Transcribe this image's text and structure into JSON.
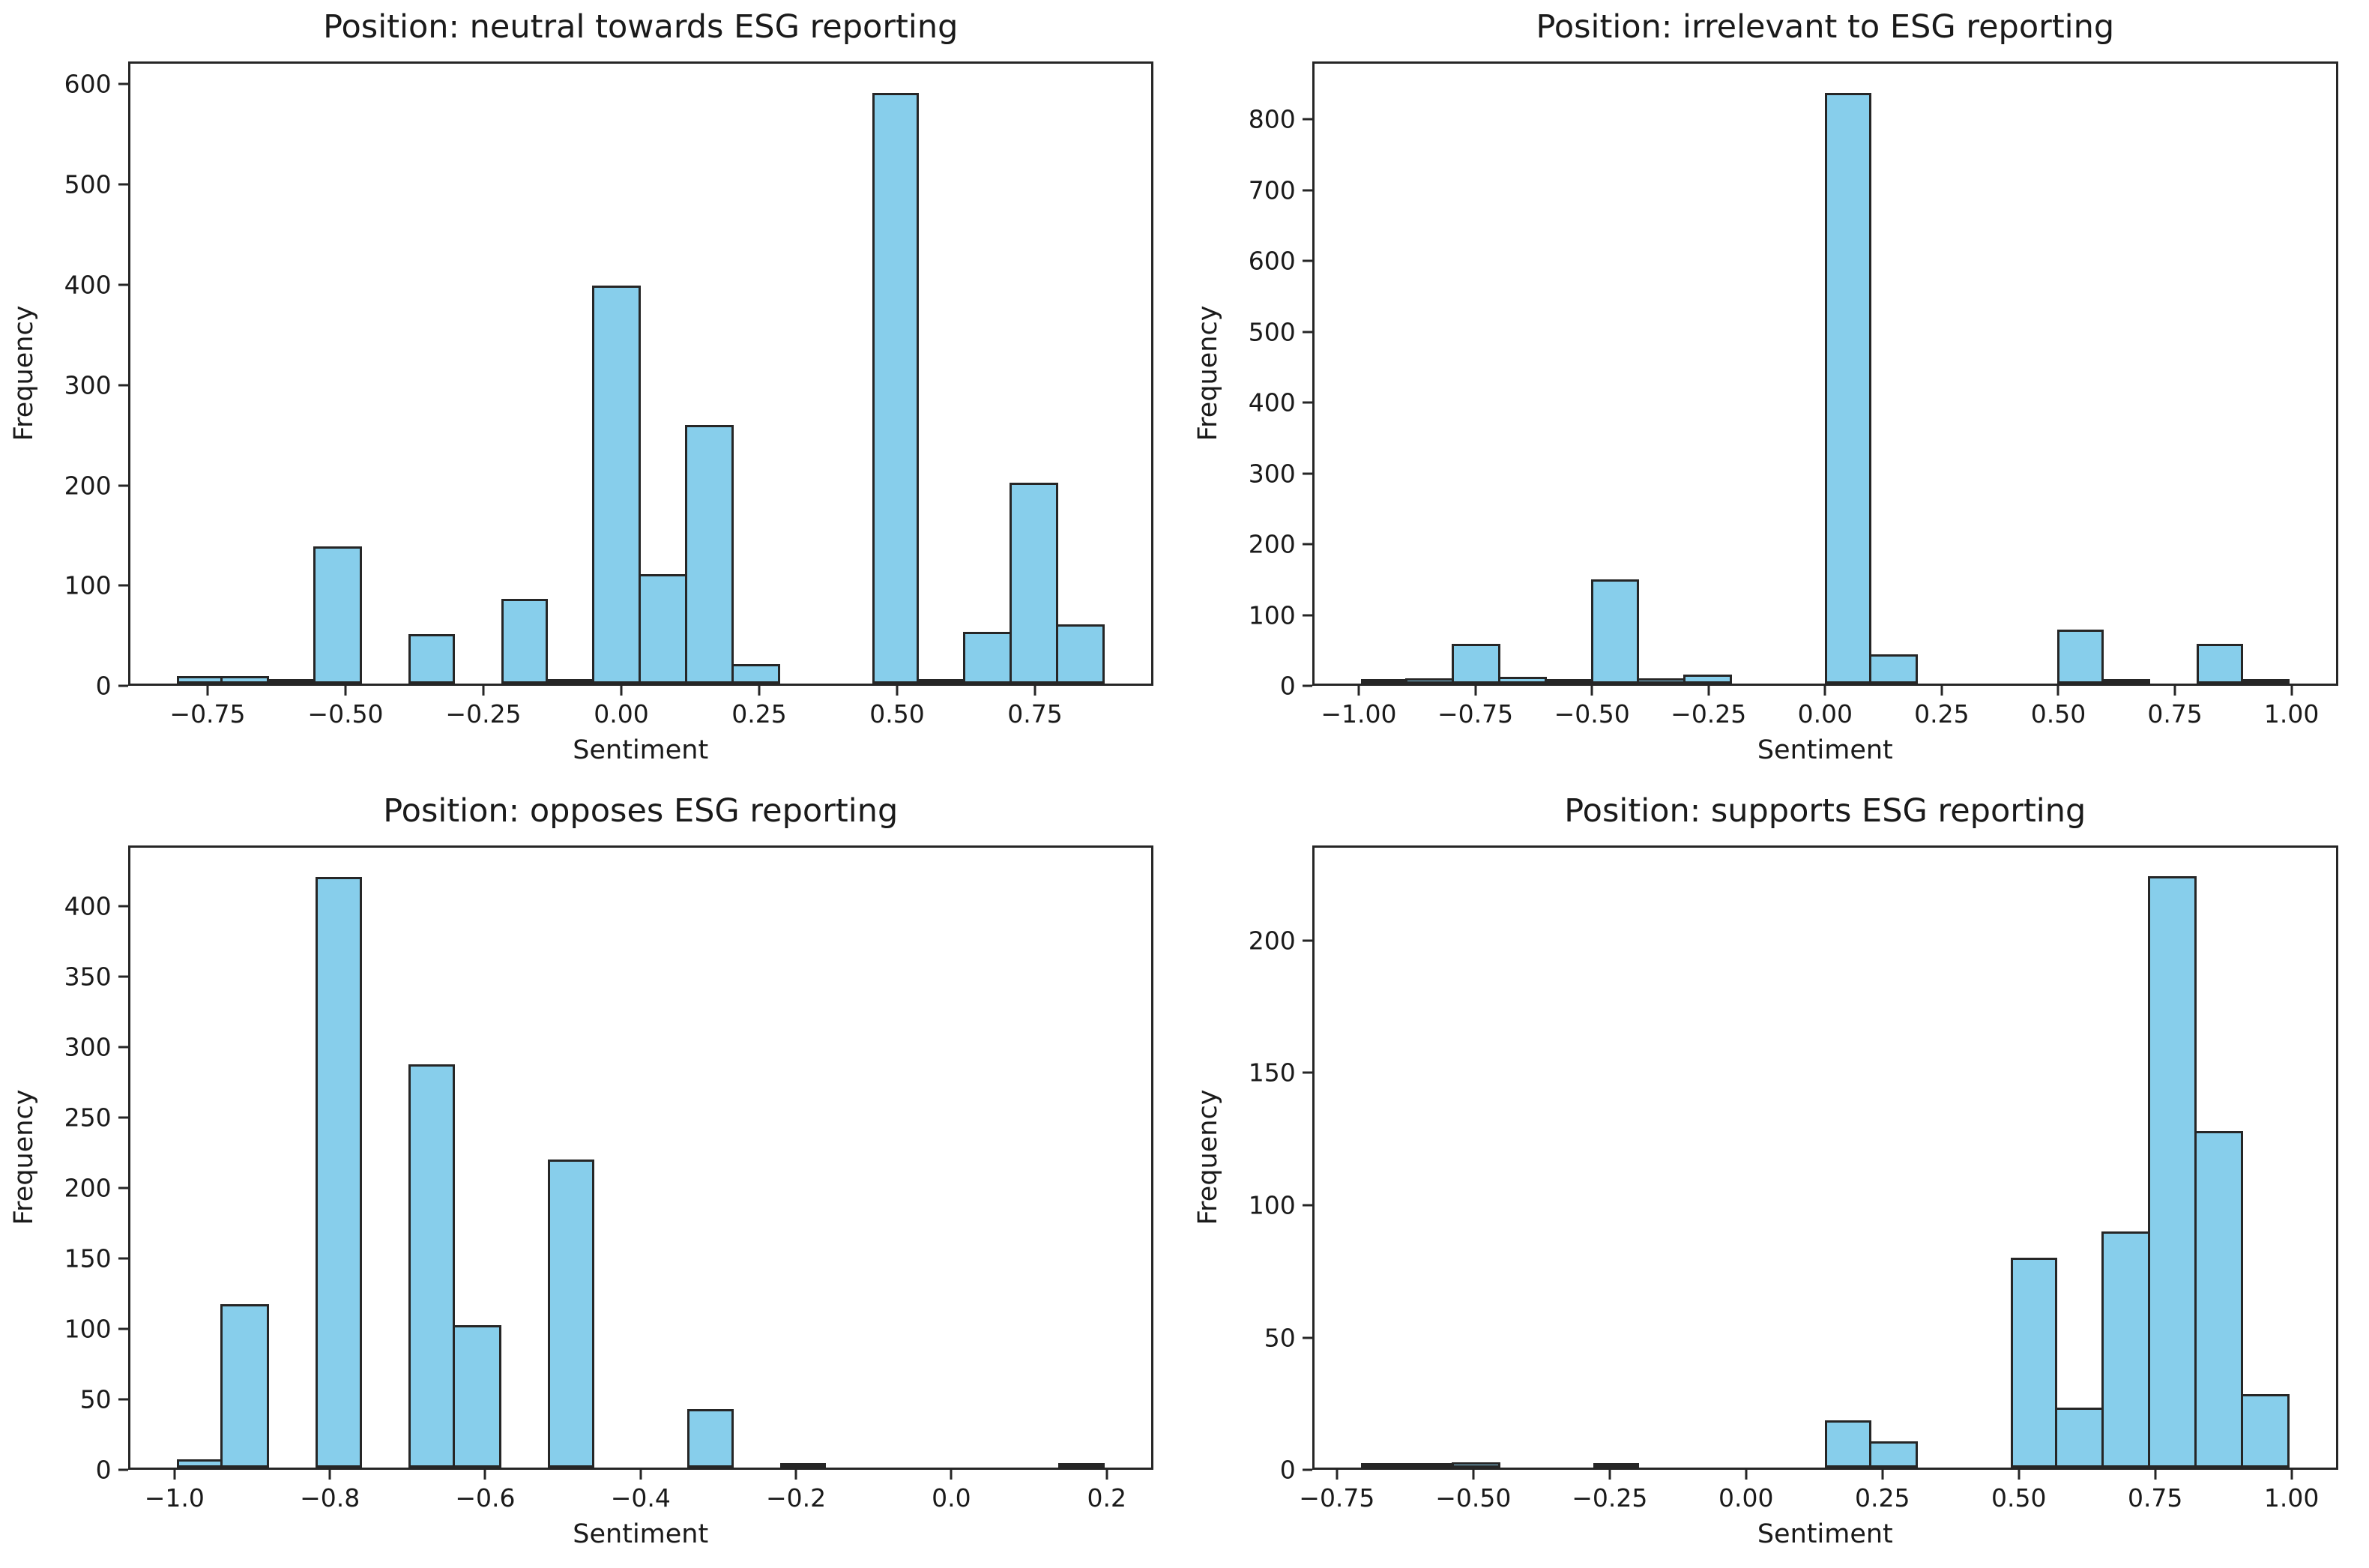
{
  "figure": {
    "background_color": "#ffffff",
    "bar_fill_color": "#87CEEB",
    "bar_edge_color": "#262626",
    "axis_color": "#262626",
    "text_color": "#1a1a1a"
  },
  "chart_data": [
    {
      "type": "bar",
      "subtype": "histogram",
      "title": "Position: neutral towards ESG reporting",
      "xlabel": "Sentiment",
      "ylabel": "Frequency",
      "grid": false,
      "legend": false,
      "bins": {
        "start": -0.81,
        "width": 0.0845,
        "count": 20
      },
      "values": [
        8,
        8,
        3,
        138,
        0,
        50,
        0,
        85,
        3,
        400,
        110,
        260,
        20,
        0,
        0,
        593,
        3,
        52,
        202,
        60
      ],
      "xlim": [
        -0.8945,
        0.9645
      ],
      "ylim": [
        0,
        623
      ],
      "xtick_values": [
        -0.75,
        -0.5,
        -0.25,
        0,
        0.25,
        0.5,
        0.75
      ],
      "xtick_labels": [
        "−0.75",
        "−0.50",
        "−0.25",
        "0.00",
        "0.25",
        "0.50",
        "0.75"
      ],
      "ytick_values": [
        0,
        100,
        200,
        300,
        400,
        500,
        600
      ],
      "ytick_labels": [
        "0",
        "100",
        "200",
        "300",
        "400",
        "500",
        "600"
      ]
    },
    {
      "type": "bar",
      "subtype": "histogram",
      "title": "Position: irrelevant to ESG reporting",
      "xlabel": "Sentiment",
      "ylabel": "Frequency",
      "grid": false,
      "legend": false,
      "bins": {
        "start": -1.0,
        "width": 0.1,
        "count": 20
      },
      "values": [
        3,
        8,
        57,
        10,
        3,
        148,
        8,
        13,
        0,
        0,
        840,
        42,
        0,
        0,
        0,
        77,
        4,
        0,
        57,
        4
      ],
      "xlim": [
        -1.1,
        1.1
      ],
      "ylim": [
        0,
        882
      ],
      "xtick_values": [
        -1,
        -0.75,
        -0.5,
        -0.25,
        0,
        0.25,
        0.5,
        0.75,
        1
      ],
      "xtick_labels": [
        "−1.00",
        "−0.75",
        "−0.50",
        "−0.25",
        "0.00",
        "0.25",
        "0.50",
        "0.75",
        "1.00"
      ],
      "ytick_values": [
        0,
        100,
        200,
        300,
        400,
        500,
        600,
        700,
        800
      ],
      "ytick_labels": [
        "0",
        "100",
        "200",
        "300",
        "400",
        "500",
        "600",
        "700",
        "800"
      ]
    },
    {
      "type": "bar",
      "subtype": "histogram",
      "title": "Position: opposes ESG reporting",
      "xlabel": "Sentiment",
      "ylabel": "Frequency",
      "grid": false,
      "legend": false,
      "bins": {
        "start": -1.0,
        "width": 0.06,
        "count": 20
      },
      "values": [
        6,
        117,
        0,
        422,
        0,
        288,
        102,
        0,
        220,
        0,
        0,
        42,
        0,
        2,
        0,
        0,
        0,
        0,
        0,
        2
      ],
      "xlim": [
        -1.06,
        0.26
      ],
      "ylim": [
        0,
        443
      ],
      "xtick_values": [
        -1,
        -0.8,
        -0.6,
        -0.4,
        -0.2,
        0,
        0.2
      ],
      "xtick_labels": [
        "−1.0",
        "−0.8",
        "−0.6",
        "−0.4",
        "−0.2",
        "0.0",
        "0.2"
      ],
      "ytick_values": [
        0,
        50,
        100,
        150,
        200,
        250,
        300,
        350,
        400
      ],
      "ytick_labels": [
        "0",
        "50",
        "100",
        "150",
        "200",
        "250",
        "300",
        "350",
        "400"
      ]
    },
    {
      "type": "bar",
      "subtype": "histogram",
      "title": "Position: supports ESG reporting",
      "xlabel": "Sentiment",
      "ylabel": "Frequency",
      "grid": false,
      "legend": false,
      "bins": {
        "start": -0.71,
        "width": 0.0855,
        "count": 20
      },
      "values": [
        1,
        1,
        2,
        0,
        0,
        1,
        0,
        0,
        0,
        0,
        18,
        10,
        0,
        0,
        80,
        23,
        90,
        225,
        128,
        28
      ],
      "xlim": [
        -0.7955,
        1.0855
      ],
      "ylim": [
        0,
        236
      ],
      "xtick_values": [
        -0.75,
        -0.5,
        -0.25,
        0,
        0.25,
        0.5,
        0.75,
        1
      ],
      "xtick_labels": [
        "−0.75",
        "−0.50",
        "−0.25",
        "0.00",
        "0.25",
        "0.50",
        "0.75",
        "1.00"
      ],
      "ytick_values": [
        0,
        50,
        100,
        150,
        200
      ],
      "ytick_labels": [
        "0",
        "50",
        "100",
        "150",
        "200"
      ]
    }
  ]
}
